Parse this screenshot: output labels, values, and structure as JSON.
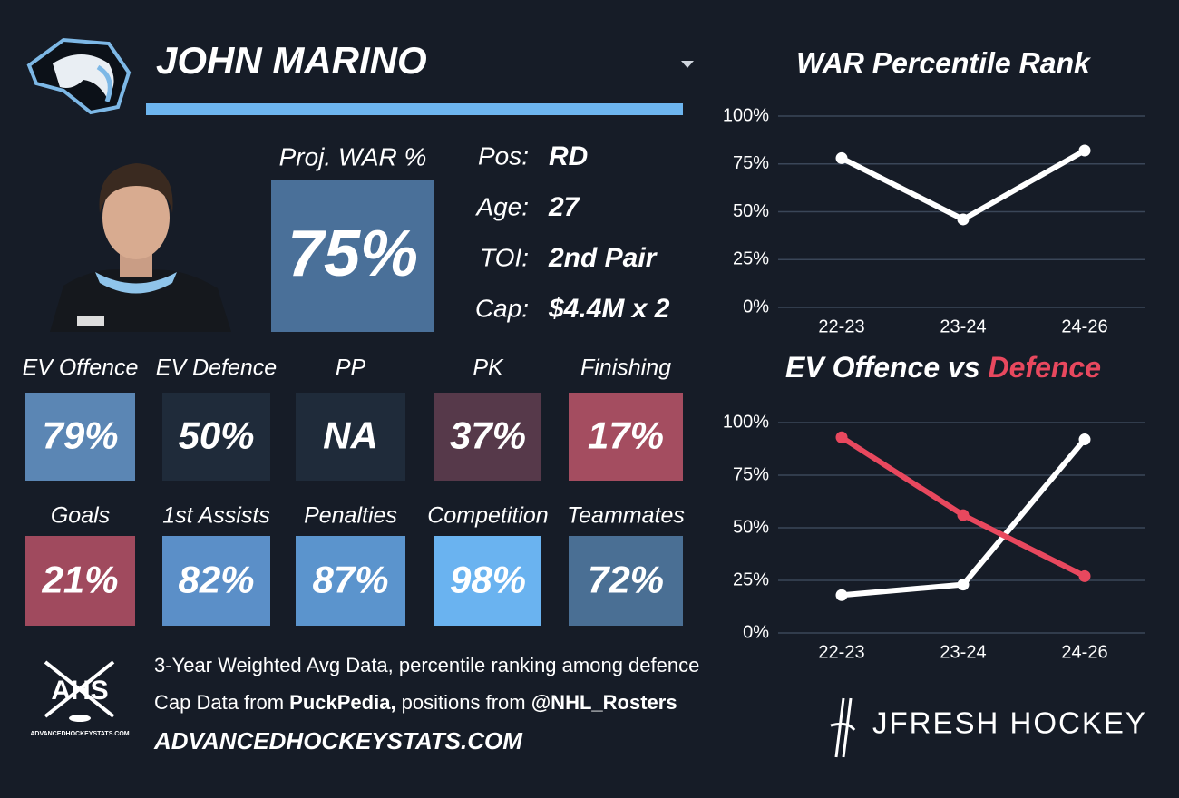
{
  "header": {
    "name": "JOHN MARINO"
  },
  "proj_war": {
    "label": "Proj. WAR %",
    "value": "75%",
    "color": "#4a7099"
  },
  "info": [
    {
      "label": "Pos:",
      "value": "RD"
    },
    {
      "label": "Age:",
      "value": "27"
    },
    {
      "label": "TOI:",
      "value": "2nd Pair"
    },
    {
      "label": "Cap:",
      "value": "$4.4M x 2"
    }
  ],
  "tiles": [
    [
      {
        "label": "EV Offence",
        "value": "79%",
        "color": "#5b86b4"
      },
      {
        "label": "EV Defence",
        "value": "50%",
        "color": "#1f2b3a"
      },
      {
        "label": "PP",
        "value": "NA",
        "color": "#1f2b3a"
      },
      {
        "label": "PK",
        "value": "37%",
        "color": "#56394a"
      },
      {
        "label": "Finishing",
        "value": "17%",
        "color": "#a44d60"
      }
    ],
    [
      {
        "label": "Goals",
        "value": "21%",
        "color": "#a04a5e"
      },
      {
        "label": "1st Assists",
        "value": "82%",
        "color": "#5b8fc8"
      },
      {
        "label": "Penalties",
        "value": "87%",
        "color": "#5b94cd"
      },
      {
        "label": "Competition",
        "value": "98%",
        "color": "#6ab3f0"
      },
      {
        "label": "Teammates",
        "value": "72%",
        "color": "#4a6f94"
      }
    ]
  ],
  "footer": {
    "line1": "3-Year Weighted Avg Data, percentile ranking among defence",
    "line2": [
      "Cap Data from ",
      "PuckPedia,",
      " positions from ",
      "@NHL_Rosters"
    ],
    "website": "ADVANCEDHOCKEYSTATS.COM"
  },
  "logos": {
    "ahs": "AHS",
    "ahs_small": "ADVANCEDHOCKEYSTATS.COM",
    "brand": "JFRESH HOCKEY"
  },
  "chart_data": [
    {
      "type": "line",
      "title": "WAR Percentile Rank",
      "categories": [
        "22-23",
        "23-24",
        "24-26"
      ],
      "series": [
        {
          "color": "#ffffff",
          "values": [
            78,
            46,
            82
          ]
        }
      ],
      "ylim": [
        0,
        100
      ],
      "yticks": [
        {
          "value": 0,
          "label": "0%"
        },
        {
          "value": 25,
          "label": "25%"
        },
        {
          "value": 50,
          "label": "50%"
        },
        {
          "value": 75,
          "label": "75%"
        },
        {
          "value": 100,
          "label": "100%"
        }
      ],
      "grid": true
    },
    {
      "type": "line",
      "title_join": " vs ",
      "categories": [
        "22-23",
        "23-24",
        "24-26"
      ],
      "series": [
        {
          "name": "EV Offence",
          "color": "#ffffff",
          "values": [
            18,
            23,
            92
          ]
        },
        {
          "name": "Defence",
          "color": "#e8485e",
          "values": [
            93,
            56,
            27
          ]
        }
      ],
      "ylim": [
        0,
        100
      ],
      "yticks": [
        {
          "value": 0,
          "label": "0%"
        },
        {
          "value": 25,
          "label": "25%"
        },
        {
          "value": 50,
          "label": "50%"
        },
        {
          "value": 75,
          "label": "75%"
        },
        {
          "value": 100,
          "label": "100%"
        }
      ],
      "grid": true
    }
  ]
}
